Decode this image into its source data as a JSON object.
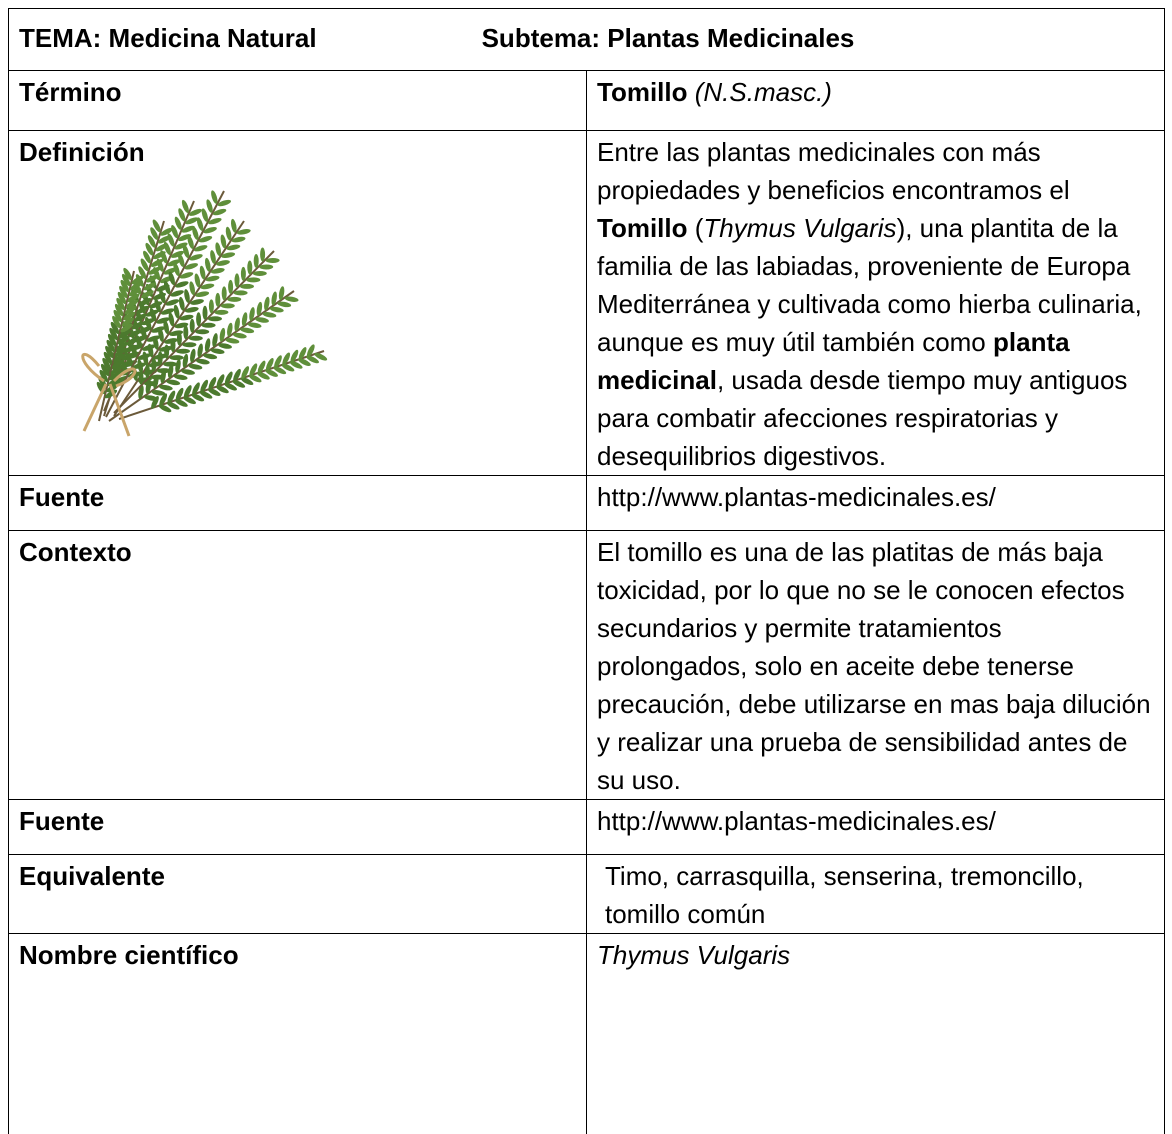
{
  "header": {
    "tema": "TEMA: Medicina Natural",
    "subtema": "Subtema: Plantas Medicinales"
  },
  "table": {
    "rows": [
      {
        "label": "Término",
        "content": [
          {
            "text": "Tomillo",
            "style": "bold"
          },
          {
            "text": " (N.S.masc.)",
            "style": "italic"
          }
        ]
      },
      {
        "label": "Definición",
        "content": [
          {
            "text": "Entre las plantas medicinales con más propiedades y beneficios encontramos el "
          },
          {
            "text": "Tomillo",
            "style": "bold"
          },
          {
            "text": " ("
          },
          {
            "text": "Thymus Vulgaris",
            "style": "italic"
          },
          {
            "text": "), una plantita de la familia de las labiadas, proveniente de Europa Mediterránea y cultivada como hierba culinaria, aunque es muy útil también como "
          },
          {
            "text": "planta medicinal",
            "style": "bold"
          },
          {
            "text": ", usada desde tiempo muy antiguos para combatir afecciones respiratorias y desequilibrios digestivos."
          }
        ]
      },
      {
        "label": "Fuente",
        "content": [
          {
            "text": "http://www.plantas-medicinales.es/"
          }
        ]
      },
      {
        "label": "Contexto",
        "content": [
          {
            "text": "El tomillo es una de las platitas de más baja toxicidad, por lo que no se le conocen efectos secundarios y permite tratamientos prolongados, solo en aceite debe tenerse precaución, debe utilizarse en mas baja dilución y realizar una prueba de sensibilidad antes de su uso."
          }
        ]
      },
      {
        "label": "Fuente",
        "content": [
          {
            "text": "http://www.plantas-medicinales.es/"
          }
        ]
      },
      {
        "label": "Equivalente",
        "content": [
          {
            "text": "Timo, carrasquilla, senserina, tremoncillo, tomillo común"
          }
        ]
      },
      {
        "label": "Nombre científico",
        "content": [
          {
            "text": "Thymus Vulgaris",
            "style": "italic"
          }
        ]
      }
    ]
  }
}
